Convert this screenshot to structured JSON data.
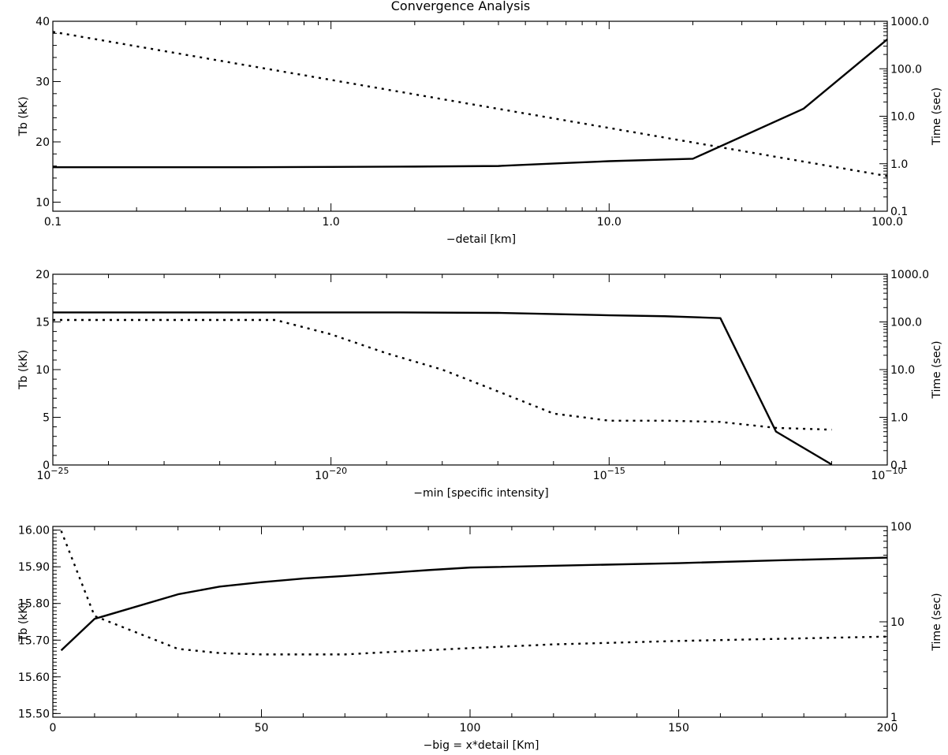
{
  "figure": {
    "title": "Convergence Analysis"
  },
  "chart_data": [
    {
      "type": "line",
      "xlabel": "−detail [km]",
      "ylabel": "Tb (kK)",
      "y2label": "Time (sec)",
      "xscale": "log",
      "xlim": [
        0.1,
        100
      ],
      "ylim": [
        8.5,
        40
      ],
      "y2scale": "log",
      "y2lim": [
        0.1,
        1000
      ],
      "xticks": [
        {
          "value": 0.1,
          "label": "0.1"
        },
        {
          "value": 1,
          "label": "1.0"
        },
        {
          "value": 10,
          "label": "10.0"
        },
        {
          "value": 100,
          "label": "100.0"
        }
      ],
      "yticks": [
        {
          "value": 10,
          "label": "10"
        },
        {
          "value": 20,
          "label": "20"
        },
        {
          "value": 30,
          "label": "30"
        },
        {
          "value": 40,
          "label": "40"
        }
      ],
      "y2ticks": [
        {
          "value": 0.1,
          "label": "0.1"
        },
        {
          "value": 1,
          "label": "1.0"
        },
        {
          "value": 10,
          "label": "10.0"
        },
        {
          "value": 100,
          "label": "100.0"
        },
        {
          "value": 1000,
          "label": "1000.0"
        }
      ],
      "series": [
        {
          "style": "solid",
          "axis": "left",
          "x": [
            0.1,
            0.2,
            0.5,
            1,
            2,
            4,
            5,
            7,
            10,
            20,
            50,
            100
          ],
          "y": [
            15.8,
            15.8,
            15.8,
            15.85,
            15.9,
            16.0,
            16.2,
            16.5,
            16.8,
            17.2,
            25.5,
            37.0
          ]
        },
        {
          "style": "dotted",
          "axis": "right",
          "x": [
            0.1,
            100
          ],
          "y": [
            600,
            0.55
          ]
        }
      ]
    },
    {
      "type": "line",
      "xlabel": "−min [specific intensity]",
      "ylabel": "Tb (kK)",
      "y2label": "Time (sec)",
      "xscale": "log",
      "xlim": [
        1e-25,
        1e-10
      ],
      "ylim": [
        0,
        20
      ],
      "y2scale": "log",
      "y2lim": [
        0.1,
        1000
      ],
      "xticks": [
        {
          "value": 1e-25,
          "base": "10",
          "exp": "−25"
        },
        {
          "value": 1e-20,
          "base": "10",
          "exp": "−20"
        },
        {
          "value": 1e-15,
          "base": "10",
          "exp": "−15"
        },
        {
          "value": 1e-10,
          "base": "10",
          "exp": "−10"
        }
      ],
      "yticks": [
        {
          "value": 0,
          "label": "0"
        },
        {
          "value": 5,
          "label": "5"
        },
        {
          "value": 10,
          "label": "10"
        },
        {
          "value": 15,
          "label": "15"
        },
        {
          "value": 20,
          "label": "20"
        }
      ],
      "y2ticks": [
        {
          "value": 0.1,
          "label": "0.1"
        },
        {
          "value": 1,
          "label": "1.0"
        },
        {
          "value": 10,
          "label": "10.0"
        },
        {
          "value": 100,
          "label": "100.0"
        },
        {
          "value": 1000,
          "label": "1000.0"
        }
      ],
      "series": [
        {
          "style": "solid",
          "axis": "left",
          "x": [
            1e-25,
            1e-22,
            1e-19,
            1e-17,
            1e-15,
            1e-14,
            1e-13,
            1e-12,
            1e-11
          ],
          "y": [
            16.0,
            16.0,
            16.0,
            15.95,
            15.7,
            15.6,
            15.4,
            3.5,
            0.05
          ]
        },
        {
          "style": "dotted",
          "axis": "right",
          "x": [
            1e-25,
            1e-21,
            1e-20,
            1e-19,
            1e-18,
            1e-17,
            1e-16,
            1e-15,
            1e-14,
            1e-13,
            1e-12,
            1e-11
          ],
          "y": [
            110,
            110,
            55,
            22,
            10,
            3.5,
            1.2,
            0.85,
            0.85,
            0.8,
            0.6,
            0.55
          ]
        }
      ]
    },
    {
      "type": "line",
      "xlabel": "−big  = x*detail [Km]",
      "ylabel": "Tb (kK)",
      "y2label": "Time (sec)",
      "xscale": "linear",
      "xlim": [
        0,
        200
      ],
      "ylim": [
        15.49,
        16.01
      ],
      "y2scale": "log",
      "y2lim": [
        1,
        100
      ],
      "xticks": [
        {
          "value": 0,
          "label": "0"
        },
        {
          "value": 50,
          "label": "50"
        },
        {
          "value": 100,
          "label": "100"
        },
        {
          "value": 150,
          "label": "150"
        },
        {
          "value": 200,
          "label": "200"
        }
      ],
      "yticks": [
        {
          "value": 15.5,
          "label": "15.50"
        },
        {
          "value": 15.6,
          "label": "15.60"
        },
        {
          "value": 15.7,
          "label": "15.70"
        },
        {
          "value": 15.8,
          "label": "15.80"
        },
        {
          "value": 15.9,
          "label": "15.90"
        },
        {
          "value": 16.0,
          "label": "16.00"
        }
      ],
      "y2ticks": [
        {
          "value": 1,
          "label": "1"
        },
        {
          "value": 10,
          "label": "10"
        },
        {
          "value": 100,
          "label": "100"
        }
      ],
      "series": [
        {
          "style": "solid",
          "axis": "left",
          "x": [
            2,
            10,
            30,
            40,
            50,
            55,
            60,
            70,
            80,
            90,
            100,
            150,
            175,
            200
          ],
          "y": [
            15.672,
            15.758,
            15.825,
            15.846,
            15.858,
            15.863,
            15.868,
            15.875,
            15.883,
            15.891,
            15.898,
            15.91,
            15.918,
            15.925
          ]
        },
        {
          "style": "dotted",
          "axis": "right",
          "x": [
            2,
            10,
            30,
            40,
            50,
            60,
            70,
            80,
            100,
            120,
            150,
            200
          ],
          "y": [
            90,
            11.5,
            5.2,
            4.7,
            4.55,
            4.55,
            4.55,
            4.8,
            5.3,
            5.8,
            6.3,
            7.0
          ]
        }
      ]
    }
  ]
}
